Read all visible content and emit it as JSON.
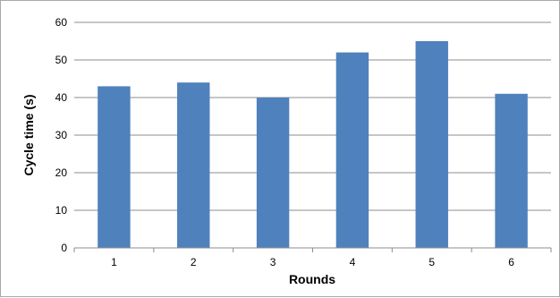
{
  "chart_data": {
    "type": "bar",
    "title": "",
    "xlabel": "Rounds",
    "ylabel": "Cycle time (s)",
    "categories": [
      "1",
      "2",
      "3",
      "4",
      "5",
      "6"
    ],
    "values": [
      43,
      44,
      40,
      52,
      55,
      41
    ],
    "ylim": [
      0,
      60
    ],
    "yticks": [
      "0",
      "10",
      "20",
      "30",
      "40",
      "50",
      "60"
    ],
    "grid": "horizontal",
    "legend": "none",
    "bar_color": "#4f81bd",
    "grid_color": "#8c8c8c"
  }
}
